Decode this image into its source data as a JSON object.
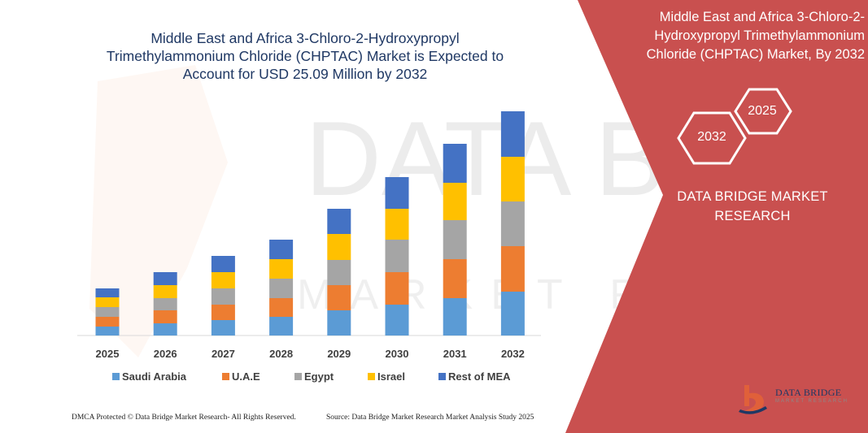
{
  "watermark": {
    "text_top": "DATA BRIDGE",
    "text_bottom": "MARKET RESEARCH"
  },
  "chart_data": {
    "type": "bar",
    "stacked": true,
    "title": "Middle East and Africa 3-Chloro-2-Hydroxypropyl Trimethylammonium Chloride (CHPTAC) Market is Expected to Account for USD 25.09 Million by 2032",
    "title_lines": [
      "Middle East and Africa 3-Chloro-2-Hydroxypropyl",
      "Trimethylammonium Chloride (CHPTAC) Market is Expected to",
      "Account for USD 25.09 Million by 2032"
    ],
    "xlabel": "",
    "ylabel": "",
    "categories": [
      "2025",
      "2026",
      "2027",
      "2028",
      "2029",
      "2030",
      "2031",
      "2032"
    ],
    "ylim": [
      0,
      280
    ],
    "grid": false,
    "legend": "bottom",
    "series": [
      {
        "name": "Saudi Arabia",
        "color": "#5b9bd5",
        "values": [
          11,
          15,
          19,
          23,
          31,
          38,
          46,
          54
        ]
      },
      {
        "name": "U.A.E",
        "color": "#ed7d31",
        "values": [
          12,
          16,
          19,
          23,
          31,
          40,
          48,
          56
        ]
      },
      {
        "name": "Egypt",
        "color": "#a5a5a5",
        "values": [
          12,
          15,
          20,
          24,
          31,
          40,
          48,
          55
        ]
      },
      {
        "name": "Israel",
        "color": "#ffc000",
        "values": [
          12,
          16,
          20,
          24,
          32,
          38,
          46,
          55
        ]
      },
      {
        "name": "Rest of MEA",
        "color": "#4472c4",
        "values": [
          11,
          16,
          20,
          24,
          31,
          39,
          48,
          56
        ]
      }
    ]
  },
  "panel": {
    "title_lines": [
      "Middle East and Africa 3-Chloro-2-",
      "Hydroxypropyl Trimethylammonium",
      "Chloride (CHPTAC) Market, By 2032"
    ],
    "hex_2032": "2032",
    "hex_2025": "2025",
    "brand_lines": [
      "DATA BRIDGE MARKET",
      "RESEARCH"
    ],
    "panel_color": "#c9504f"
  },
  "footer": {
    "left": "DMCA Protected © Data Bridge Market Research-  All Rights Reserved.",
    "right": "Source: Data Bridge Market Research  Market Analysis Study 2025"
  },
  "logo": {
    "name": "DATA BRIDGE",
    "sub": "MARKET RESEARCH"
  }
}
